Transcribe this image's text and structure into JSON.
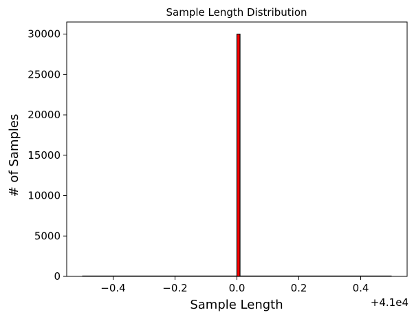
{
  "chart_data": {
    "type": "bar",
    "title": "Sample Length Distribution",
    "xlabel": "Sample Length",
    "ylabel": "# of Samples",
    "x_offset_label": "+4.1e4",
    "xlim": [
      -0.55,
      0.55
    ],
    "ylim": [
      0,
      31500
    ],
    "x_ticks": [
      -0.4,
      -0.2,
      0.0,
      0.2,
      0.4
    ],
    "x_tick_labels": [
      "−0.4",
      "−0.2",
      "0.0",
      "0.2",
      "0.4"
    ],
    "y_ticks": [
      0,
      5000,
      10000,
      15000,
      20000,
      25000,
      30000
    ],
    "y_tick_labels": [
      "0",
      "5000",
      "10000",
      "15000",
      "20000",
      "25000",
      "30000"
    ],
    "bins": [
      {
        "x0": 0.0,
        "x1": 0.01,
        "count": 30000
      }
    ],
    "baseline_range": [
      -0.5,
      0.5
    ],
    "bar_color": "#ff0000",
    "edge_color": "#000000",
    "grid": false
  }
}
